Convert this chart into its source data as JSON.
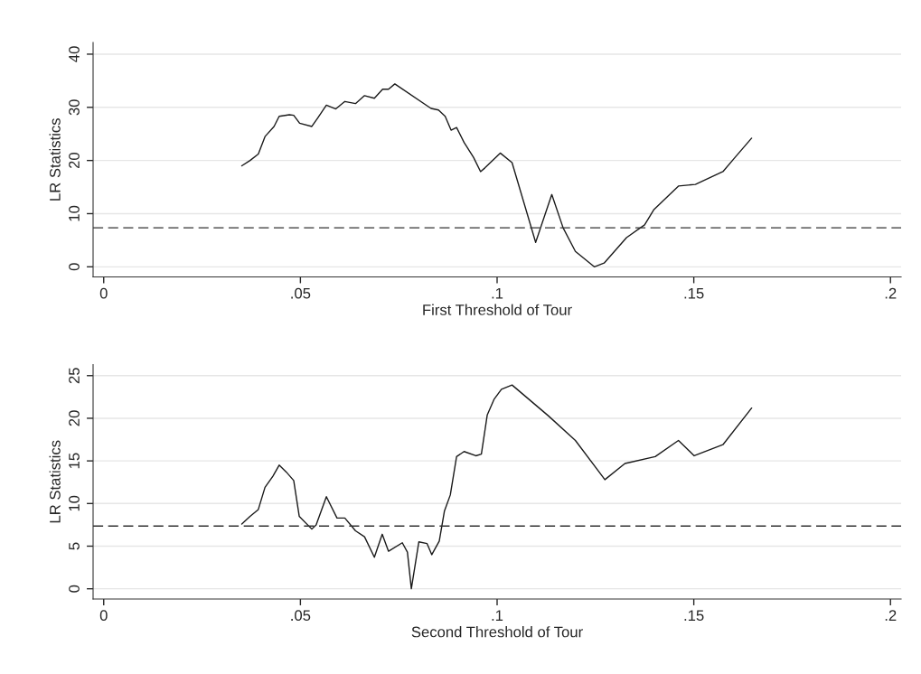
{
  "chart_data": [
    {
      "type": "line",
      "xlabel": "First Threshold of Tour",
      "ylabel": "LR Statistics",
      "xlim": [
        -0.0027,
        0.2027
      ],
      "ylim": [
        -1.9,
        42.2
      ],
      "xticks": [
        0,
        {
          "value": 0.05,
          "label": ".05"
        },
        {
          "value": 0.1,
          "label": ".1"
        },
        {
          "value": 0.15,
          "label": ".15"
        },
        {
          "value": 0.2,
          "label": ".2"
        }
      ],
      "yticks": [
        0,
        10,
        20,
        30,
        40
      ],
      "grid": "y",
      "ref_lines": [
        {
          "axis": "y",
          "value": 7.35,
          "line_style": "dashed",
          "color": "#333333"
        }
      ],
      "series": [
        {
          "color": "#1a1a1a",
          "x": [
            0.0351,
            0.0372,
            0.0393,
            0.041,
            0.0433,
            0.0446,
            0.0472,
            0.0483,
            0.0498,
            0.0529,
            0.0544,
            0.0566,
            0.059,
            0.0613,
            0.064,
            0.0663,
            0.0688,
            0.0709,
            0.0724,
            0.074,
            0.0832,
            0.0851,
            0.0868,
            0.0883,
            0.0897,
            0.0916,
            0.094,
            0.0958,
            0.0969,
            0.1008,
            0.1038,
            0.1098,
            0.1139,
            0.1168,
            0.1199,
            0.1247,
            0.1272,
            0.1329,
            0.1375,
            0.1398,
            0.1461,
            0.1504,
            0.1574,
            0.1605,
            0.1647
          ],
          "values": [
            19.0,
            20.0,
            21.2,
            24.5,
            26.4,
            28.3,
            28.6,
            28.5,
            27.0,
            26.4,
            28.0,
            30.4,
            29.7,
            31.1,
            30.7,
            32.2,
            31.7,
            33.4,
            33.4,
            34.4,
            29.8,
            29.5,
            28.3,
            25.7,
            26.2,
            23.4,
            20.6,
            17.9,
            18.6,
            21.4,
            19.6,
            4.6,
            13.6,
            7.3,
            2.9,
            0.0,
            0.7,
            5.5,
            7.9,
            10.7,
            15.2,
            15.5,
            17.9,
            20.6,
            24.2
          ]
        }
      ]
    },
    {
      "type": "line",
      "xlabel": "Second Threshold of Tour",
      "ylabel": "LR Statistics",
      "xlim": [
        -0.0027,
        0.2027
      ],
      "ylim": [
        -1.2,
        26.3
      ],
      "xticks": [
        0,
        {
          "value": 0.05,
          "label": ".05"
        },
        {
          "value": 0.1,
          "label": ".1"
        },
        {
          "value": 0.15,
          "label": ".15"
        },
        {
          "value": 0.2,
          "label": ".2"
        }
      ],
      "yticks": [
        0,
        5,
        10,
        15,
        20,
        25
      ],
      "grid": "y",
      "ref_lines": [
        {
          "axis": "y",
          "value": 7.35,
          "line_style": "dashed",
          "color": "#333333"
        }
      ],
      "series": [
        {
          "color": "#1a1a1a",
          "x": [
            0.0351,
            0.0372,
            0.0393,
            0.041,
            0.043,
            0.0446,
            0.0464,
            0.0483,
            0.0497,
            0.0529,
            0.054,
            0.0566,
            0.0593,
            0.0613,
            0.064,
            0.0663,
            0.0688,
            0.0708,
            0.0724,
            0.0759,
            0.0772,
            0.0782,
            0.0801,
            0.0822,
            0.0834,
            0.0853,
            0.0866,
            0.0881,
            0.0897,
            0.0916,
            0.0946,
            0.096,
            0.0975,
            0.0992,
            0.1011,
            0.1038,
            0.113,
            0.1199,
            0.1274,
            0.1325,
            0.1402,
            0.1461,
            0.1501,
            0.1574,
            0.1647
          ],
          "values": [
            7.6,
            8.5,
            9.3,
            11.9,
            13.2,
            14.5,
            13.7,
            12.7,
            8.5,
            7.0,
            7.5,
            10.8,
            8.3,
            8.3,
            6.8,
            6.1,
            3.7,
            6.4,
            4.4,
            5.4,
            4.3,
            0.0,
            5.5,
            5.3,
            4.0,
            5.6,
            9.1,
            11.0,
            15.5,
            16.1,
            15.6,
            15.8,
            20.4,
            22.2,
            23.4,
            23.9,
            20.3,
            17.4,
            12.8,
            14.7,
            15.5,
            17.4,
            15.6,
            16.9,
            21.2
          ]
        }
      ]
    }
  ]
}
